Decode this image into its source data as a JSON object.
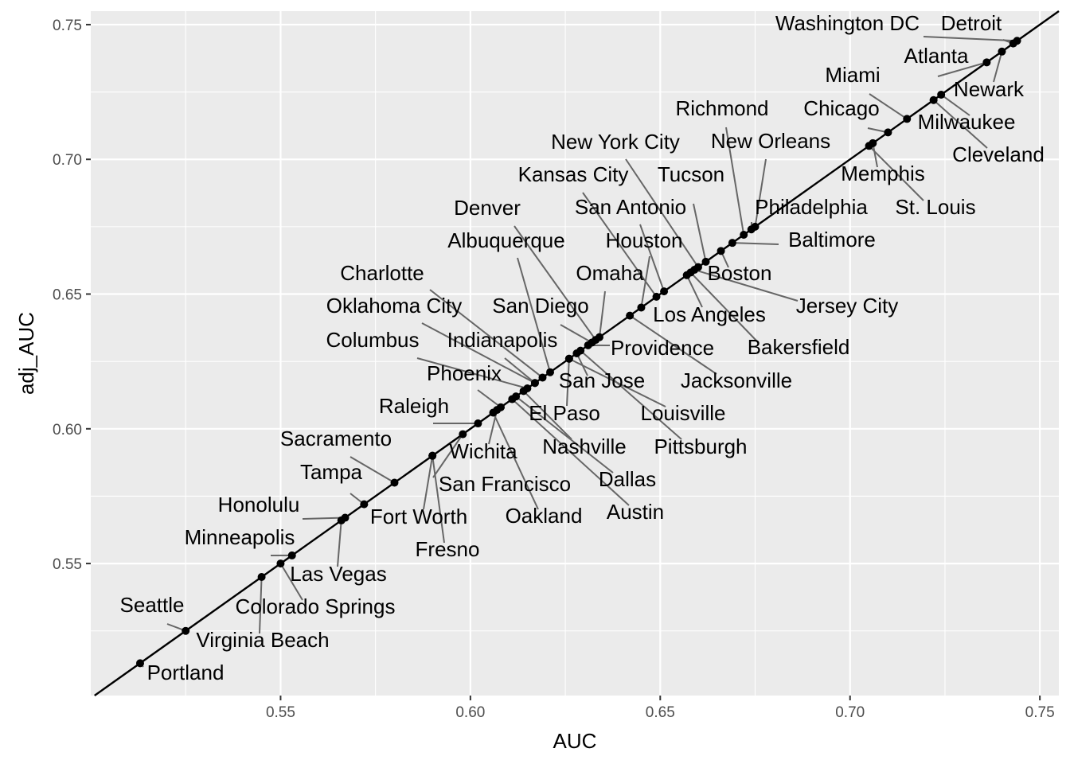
{
  "chart_data": {
    "type": "scatter",
    "xlabel": "AUC",
    "ylabel": "adj_AUC",
    "xlim": [
      0.5,
      0.755
    ],
    "ylim": [
      0.501,
      0.755
    ],
    "x_ticks": [
      0.55,
      0.6,
      0.65,
      0.7,
      0.75
    ],
    "x_tick_labels": [
      "0.55",
      "0.60",
      "0.65",
      "0.70",
      "0.75"
    ],
    "y_ticks": [
      0.55,
      0.6,
      0.65,
      0.7,
      0.75
    ],
    "y_tick_labels": [
      "0.55",
      "0.60",
      "0.65",
      "0.70",
      "0.75"
    ],
    "grid": true,
    "reference_line": "y = x",
    "colors": {
      "panel": "#ebebeb",
      "grid": "#ffffff",
      "point": "#000000",
      "segment": "#666666",
      "ref_line": "#000000"
    },
    "points": [
      {
        "name": "Washington DC",
        "x": 0.744,
        "y": 0.744
      },
      {
        "name": "Detroit",
        "x": 0.743,
        "y": 0.743
      },
      {
        "name": "Newark",
        "x": 0.74,
        "y": 0.74
      },
      {
        "name": "Atlanta",
        "x": 0.736,
        "y": 0.736
      },
      {
        "name": "Milwaukee",
        "x": 0.724,
        "y": 0.724
      },
      {
        "name": "Cleveland",
        "x": 0.722,
        "y": 0.722
      },
      {
        "name": "Miami",
        "x": 0.715,
        "y": 0.715
      },
      {
        "name": "Chicago",
        "x": 0.71,
        "y": 0.71
      },
      {
        "name": "Memphis",
        "x": 0.706,
        "y": 0.706
      },
      {
        "name": "St. Louis",
        "x": 0.705,
        "y": 0.705
      },
      {
        "name": "New Orleans",
        "x": 0.675,
        "y": 0.675
      },
      {
        "name": "Philadelphia",
        "x": 0.674,
        "y": 0.674
      },
      {
        "name": "Richmond",
        "x": 0.672,
        "y": 0.672
      },
      {
        "name": "Baltimore",
        "x": 0.669,
        "y": 0.669
      },
      {
        "name": "Boston",
        "x": 0.666,
        "y": 0.666
      },
      {
        "name": "Tucson",
        "x": 0.662,
        "y": 0.662
      },
      {
        "name": "New York City",
        "x": 0.66,
        "y": 0.66
      },
      {
        "name": "Jersey City",
        "x": 0.659,
        "y": 0.659
      },
      {
        "name": "Bakersfield",
        "x": 0.658,
        "y": 0.658
      },
      {
        "name": "Los Angeles",
        "x": 0.657,
        "y": 0.657
      },
      {
        "name": "San Antonio",
        "x": 0.651,
        "y": 0.651
      },
      {
        "name": "Kansas City",
        "x": 0.649,
        "y": 0.649
      },
      {
        "name": "Houston",
        "x": 0.645,
        "y": 0.645
      },
      {
        "name": "Jacksonville",
        "x": 0.642,
        "y": 0.642
      },
      {
        "name": "Omaha",
        "x": 0.634,
        "y": 0.634
      },
      {
        "name": "Denver",
        "x": 0.633,
        "y": 0.633
      },
      {
        "name": "San Diego",
        "x": 0.632,
        "y": 0.632
      },
      {
        "name": "Providence",
        "x": 0.631,
        "y": 0.631
      },
      {
        "name": "Pittsburgh",
        "x": 0.629,
        "y": 0.629
      },
      {
        "name": "San Jose",
        "x": 0.628,
        "y": 0.628
      },
      {
        "name": "El Paso",
        "x": 0.626,
        "y": 0.626
      },
      {
        "name": "Louisville",
        "x": 0.626,
        "y": 0.626
      },
      {
        "name": "Albuquerque",
        "x": 0.621,
        "y": 0.621
      },
      {
        "name": "Charlotte",
        "x": 0.619,
        "y": 0.619
      },
      {
        "name": "Oklahoma City",
        "x": 0.617,
        "y": 0.617
      },
      {
        "name": "Indianapolis",
        "x": 0.617,
        "y": 0.617
      },
      {
        "name": "Columbus",
        "x": 0.615,
        "y": 0.615
      },
      {
        "name": "Nashville",
        "x": 0.614,
        "y": 0.614
      },
      {
        "name": "Dallas",
        "x": 0.612,
        "y": 0.612
      },
      {
        "name": "Austin",
        "x": 0.611,
        "y": 0.611
      },
      {
        "name": "Phoenix",
        "x": 0.608,
        "y": 0.608
      },
      {
        "name": "Wichita",
        "x": 0.607,
        "y": 0.607
      },
      {
        "name": "Oakland",
        "x": 0.606,
        "y": 0.606
      },
      {
        "name": "Raleigh",
        "x": 0.602,
        "y": 0.602
      },
      {
        "name": "San Francisco",
        "x": 0.598,
        "y": 0.598
      },
      {
        "name": "Fort Worth",
        "x": 0.59,
        "y": 0.59
      },
      {
        "name": "Fresno",
        "x": 0.59,
        "y": 0.59
      },
      {
        "name": "Sacramento",
        "x": 0.58,
        "y": 0.58
      },
      {
        "name": "Tampa",
        "x": 0.572,
        "y": 0.572
      },
      {
        "name": "Honolulu",
        "x": 0.567,
        "y": 0.567
      },
      {
        "name": "Las Vegas",
        "x": 0.566,
        "y": 0.566
      },
      {
        "name": "Minneapolis",
        "x": 0.553,
        "y": 0.553
      },
      {
        "name": "Colorado Springs",
        "x": 0.55,
        "y": 0.55
      },
      {
        "name": "Virginia Beach",
        "x": 0.545,
        "y": 0.545
      },
      {
        "name": "Seattle",
        "x": 0.525,
        "y": 0.525
      },
      {
        "name": "Portland",
        "x": 0.513,
        "y": 0.513
      }
    ]
  }
}
